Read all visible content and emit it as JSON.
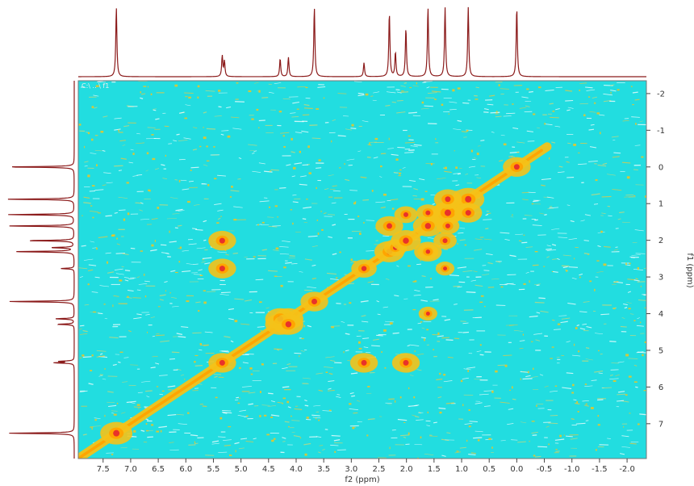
{
  "chart_data": {
    "type": "heatmap",
    "title": "",
    "plot_label": "C:\\ .. \\ f1",
    "xlabel": "f2 (ppm)",
    "ylabel": "f1 (ppm)",
    "xlim": [
      7.95,
      -2.35
    ],
    "ylim": [
      -2.35,
      7.95
    ],
    "x_ticks": [
      7.5,
      7.0,
      6.5,
      6.0,
      5.5,
      5.0,
      4.5,
      4.0,
      3.5,
      3.0,
      2.5,
      2.0,
      1.5,
      1.0,
      0.5,
      0.0,
      -0.5,
      -1.0,
      -1.5,
      -2.0
    ],
    "x_tick_labels": [
      "7.5",
      "7.0",
      "6.5",
      "6.0",
      "5.5",
      "5.0",
      "4.5",
      "4.0",
      "3.5",
      "3.0",
      "2.5",
      "2.0",
      "1.5",
      "1.0",
      "0.5",
      "0.0",
      "-0.5",
      "-1.0",
      "-1.5",
      "-2.0"
    ],
    "y_ticks": [
      -2,
      -1,
      0,
      1,
      2,
      3,
      4,
      5,
      6,
      7
    ],
    "y_tick_labels": [
      "-2",
      "-1",
      "0",
      "1",
      "2",
      "3",
      "4",
      "5",
      "6",
      "7"
    ],
    "colors": {
      "noise": "#22dde0",
      "low": "#f5c218",
      "mid": "#ffa500",
      "high": "#e8322a",
      "projection": "#8b1a1a"
    },
    "diagonal_peaks": [
      {
        "f2": 7.26,
        "f1": 7.26,
        "intensity": 1.0
      },
      {
        "f2": 5.34,
        "f1": 5.34,
        "intensity": 0.8
      },
      {
        "f2": 4.29,
        "f1": 4.29,
        "intensity": 0.9
      },
      {
        "f2": 4.14,
        "f1": 4.14,
        "intensity": 0.9
      },
      {
        "f2": 3.67,
        "f1": 3.67,
        "intensity": 0.8
      },
      {
        "f2": 2.77,
        "f1": 2.77,
        "intensity": 0.7
      },
      {
        "f2": 2.31,
        "f1": 2.31,
        "intensity": 0.9
      },
      {
        "f2": 2.2,
        "f1": 2.2,
        "intensity": 0.6
      },
      {
        "f2": 2.01,
        "f1": 2.01,
        "intensity": 0.9
      },
      {
        "f2": 1.61,
        "f1": 1.61,
        "intensity": 0.9
      },
      {
        "f2": 1.3,
        "f1": 1.3,
        "intensity": 1.0
      },
      {
        "f2": 1.25,
        "f1": 1.25,
        "intensity": 1.0
      },
      {
        "f2": 0.88,
        "f1": 0.88,
        "intensity": 1.0
      },
      {
        "f2": 0.0,
        "f1": 0.0,
        "intensity": 0.8
      }
    ],
    "cross_peaks": [
      {
        "f2": 5.34,
        "f1": 2.01,
        "intensity": 0.8
      },
      {
        "f2": 5.34,
        "f1": 2.77,
        "intensity": 0.8
      },
      {
        "f2": 2.77,
        "f1": 5.34,
        "intensity": 0.8
      },
      {
        "f2": 2.01,
        "f1": 5.34,
        "intensity": 0.8
      },
      {
        "f2": 4.29,
        "f1": 4.14,
        "intensity": 0.9
      },
      {
        "f2": 4.14,
        "f1": 4.29,
        "intensity": 0.9
      },
      {
        "f2": 2.31,
        "f1": 1.61,
        "intensity": 0.8
      },
      {
        "f2": 1.61,
        "f1": 2.31,
        "intensity": 0.8
      },
      {
        "f2": 2.01,
        "f1": 1.3,
        "intensity": 0.6
      },
      {
        "f2": 1.3,
        "f1": 2.01,
        "intensity": 0.6
      },
      {
        "f2": 1.61,
        "f1": 1.25,
        "intensity": 0.6
      },
      {
        "f2": 1.25,
        "f1": 1.61,
        "intensity": 0.6
      },
      {
        "f2": 0.88,
        "f1": 1.25,
        "intensity": 0.8
      },
      {
        "f2": 1.25,
        "f1": 0.88,
        "intensity": 0.8
      },
      {
        "f2": 1.61,
        "f1": 2.31,
        "intensity": 0.5
      },
      {
        "f2": 1.3,
        "f1": 2.77,
        "intensity": 0.4
      },
      {
        "f2": 1.61,
        "f1": 4.0,
        "intensity": 0.4
      }
    ],
    "projection_peaks": [
      {
        "ppm": 7.26,
        "height": 1.0
      },
      {
        "ppm": 5.34,
        "height": 0.3
      },
      {
        "ppm": 5.3,
        "height": 0.22
      },
      {
        "ppm": 4.29,
        "height": 0.26
      },
      {
        "ppm": 4.14,
        "height": 0.28
      },
      {
        "ppm": 3.67,
        "height": 1.0
      },
      {
        "ppm": 2.77,
        "height": 0.2
      },
      {
        "ppm": 2.31,
        "height": 0.92
      },
      {
        "ppm": 2.2,
        "height": 0.35
      },
      {
        "ppm": 2.01,
        "height": 0.7
      },
      {
        "ppm": 1.61,
        "height": 1.0
      },
      {
        "ppm": 1.3,
        "height": 1.0
      },
      {
        "ppm": 0.88,
        "height": 1.0
      },
      {
        "ppm": 0.0,
        "height": 1.0
      }
    ]
  }
}
